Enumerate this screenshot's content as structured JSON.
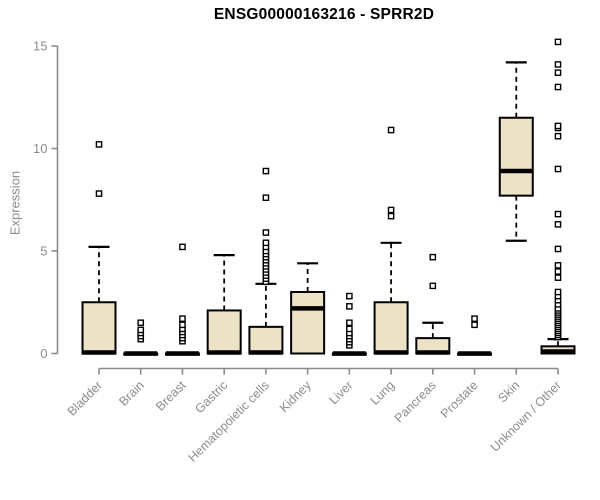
{
  "colors": {
    "background": "#FFFFFF",
    "box_fill": "#ECE3C6",
    "box_border": "#000000",
    "median": "#000000",
    "whisker": "#000000",
    "axis": "#8A8A8A",
    "tick_label": "#8C8C8C",
    "title": "#000000"
  },
  "chart_data": {
    "type": "boxplot",
    "title": "ENSG00000163216 - SPRR2D",
    "ylabel": "Expression",
    "xlabel": "",
    "ylim": [
      0,
      15
    ],
    "yticks": [
      0,
      5,
      10,
      15
    ],
    "grid": "off",
    "legend": "none",
    "categories": [
      "Bladder",
      "Brain",
      "Breast",
      "Gastric",
      "Hematopoietic cells",
      "Kidney",
      "Liver",
      "Lung",
      "Pancreas",
      "Prostate",
      "Skin",
      "Unknown / Other"
    ],
    "boxes": [
      {
        "name": "Bladder",
        "q1": 0,
        "median": 0.05,
        "q3": 2.5,
        "whisker_low": 0,
        "whisker_high": 5.2,
        "outliers": [
          7.8,
          10.2
        ]
      },
      {
        "name": "Brain",
        "q1": 0,
        "median": 0,
        "q3": 0,
        "whisker_low": 0,
        "whisker_high": 0,
        "outliers": [
          0.7,
          0.85,
          1.0,
          1.15,
          1.5
        ]
      },
      {
        "name": "Breast",
        "q1": 0,
        "median": 0,
        "q3": 0,
        "whisker_low": 0,
        "whisker_high": 0,
        "outliers": [
          0.6,
          0.75,
          0.9,
          1.05,
          1.2,
          1.4,
          1.7,
          5.2
        ]
      },
      {
        "name": "Gastric",
        "q1": 0,
        "median": 0.05,
        "q3": 2.1,
        "whisker_low": 0,
        "whisker_high": 4.8,
        "outliers": []
      },
      {
        "name": "Hematopoietic cells",
        "q1": 0,
        "median": 0.05,
        "q3": 1.3,
        "whisker_low": 0,
        "whisker_high": 3.4,
        "outliers": [
          3.5,
          3.65,
          3.8,
          3.95,
          4.1,
          4.25,
          4.4,
          4.55,
          4.7,
          4.85,
          5.0,
          5.2,
          5.4,
          5.9,
          7.6,
          8.9
        ]
      },
      {
        "name": "Kidney",
        "q1": 0,
        "median": 2.2,
        "q3": 3.0,
        "whisker_low": 0,
        "whisker_high": 4.4,
        "outliers": []
      },
      {
        "name": "Liver",
        "q1": 0,
        "median": 0,
        "q3": 0,
        "whisker_low": 0,
        "whisker_high": 0,
        "outliers": [
          0.4,
          0.55,
          0.7,
          0.85,
          1.0,
          1.2,
          1.5,
          2.3,
          2.8
        ]
      },
      {
        "name": "Lung",
        "q1": 0,
        "median": 0.05,
        "q3": 2.5,
        "whisker_low": 0,
        "whisker_high": 5.4,
        "outliers": [
          6.7,
          7.0,
          10.9
        ]
      },
      {
        "name": "Pancreas",
        "q1": 0,
        "median": 0.05,
        "q3": 0.75,
        "whisker_low": 0,
        "whisker_high": 1.5,
        "outliers": [
          3.3,
          4.7
        ]
      },
      {
        "name": "Prostate",
        "q1": 0,
        "median": 0,
        "q3": 0,
        "whisker_low": 0,
        "whisker_high": 0,
        "outliers": [
          1.4,
          1.7
        ]
      },
      {
        "name": "Skin",
        "q1": 7.7,
        "median": 8.9,
        "q3": 11.5,
        "whisker_low": 5.5,
        "whisker_high": 14.2,
        "outliers": []
      },
      {
        "name": "Unknown / Other",
        "q1": 0,
        "median": 0.1,
        "q3": 0.35,
        "whisker_low": 0,
        "whisker_high": 0.7,
        "outliers": [
          0.8,
          0.9,
          1.0,
          1.1,
          1.2,
          1.3,
          1.4,
          1.5,
          1.6,
          1.7,
          1.8,
          1.9,
          2.0,
          2.1,
          2.2,
          2.4,
          2.6,
          2.8,
          3.0,
          3.7,
          4.0,
          4.3,
          5.1,
          6.3,
          6.8,
          9.0,
          10.6,
          11.0,
          11.1,
          13.0,
          13.7,
          14.1,
          15.2
        ]
      }
    ]
  }
}
